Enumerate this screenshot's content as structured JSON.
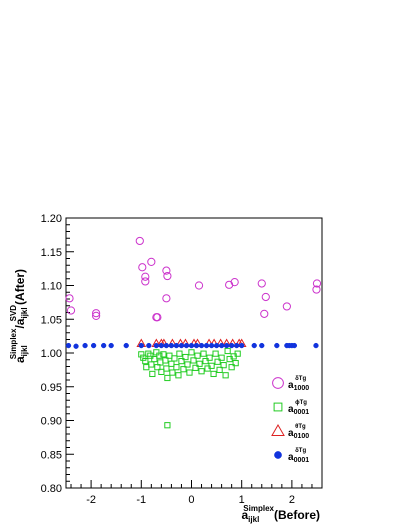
{
  "chart_data": {
    "type": "scatter",
    "title": "",
    "xlabel": {
      "base": "a",
      "sup": "Simplex",
      "sub": "ijkl",
      "tail": "(Before)"
    },
    "ylabel": {
      "num_base": "a",
      "num_sup": "Simplex",
      "num_sub": "ijkl",
      "den_base": "a",
      "den_sup": "SVD",
      "den_sub": "ijkl",
      "tail": "(After)"
    },
    "xlim": [
      -2.5,
      2.6
    ],
    "ylim": [
      0.8,
      1.2
    ],
    "xticks": [
      -2,
      -1,
      0,
      1,
      2
    ],
    "xtick_labels": [
      "-2",
      "-1",
      "0",
      "1",
      "2"
    ],
    "yticks": [
      0.8,
      0.85,
      0.9,
      0.95,
      1.0,
      1.05,
      1.1,
      1.15,
      1.2
    ],
    "ytick_labels": [
      "0.80",
      "0.85",
      "0.90",
      "0.95",
      "1.00",
      "1.05",
      "1.10",
      "1.15",
      "1.20"
    ],
    "grid": false,
    "legend_position": "bottom-right",
    "series": [
      {
        "name": "a1000 delta T g",
        "legend": {
          "base": "a",
          "sup": "δTg",
          "sub": "1000"
        },
        "marker": "open-circle",
        "color": "#cc33cc",
        "points": [
          [
            -2.43,
            1.081
          ],
          [
            -2.4,
            1.063
          ],
          [
            -1.9,
            1.059
          ],
          [
            -1.9,
            1.055
          ],
          [
            -1.03,
            1.166
          ],
          [
            -0.98,
            1.127
          ],
          [
            -0.92,
            1.106
          ],
          [
            -0.92,
            1.113
          ],
          [
            -0.8,
            1.135
          ],
          [
            -0.7,
            1.053
          ],
          [
            -0.68,
            1.053
          ],
          [
            -0.5,
            1.122
          ],
          [
            -0.48,
            1.114
          ],
          [
            -0.5,
            1.081
          ],
          [
            0.15,
            1.1
          ],
          [
            0.75,
            1.101
          ],
          [
            0.86,
            1.105
          ],
          [
            1.4,
            1.103
          ],
          [
            1.45,
            1.058
          ],
          [
            1.48,
            1.083
          ],
          [
            1.9,
            1.069
          ],
          [
            2.5,
            1.103
          ],
          [
            2.49,
            1.094
          ]
        ]
      },
      {
        "name": "a0001 phi T g",
        "legend": {
          "base": "a",
          "sup": "ϕTg",
          "sub": "0001"
        },
        "marker": "open-square",
        "color": "#22cc22",
        "points": [
          [
            -1.0,
            0.998
          ],
          [
            -0.96,
            0.993
          ],
          [
            -0.92,
            0.988
          ],
          [
            -0.9,
            0.979
          ],
          [
            -0.86,
            0.999
          ],
          [
            -0.82,
            0.996
          ],
          [
            -0.8,
            0.983
          ],
          [
            -0.78,
            0.969
          ],
          [
            -0.74,
            0.991
          ],
          [
            -0.7,
            1.001
          ],
          [
            -0.68,
            0.979
          ],
          [
            -0.64,
            0.996
          ],
          [
            -0.62,
            0.986
          ],
          [
            -0.6,
            0.972
          ],
          [
            -0.56,
            0.998
          ],
          [
            -0.52,
            0.989
          ],
          [
            -0.5,
            0.977
          ],
          [
            -0.48,
            0.963
          ],
          [
            -0.44,
            0.996
          ],
          [
            -0.4,
            0.984
          ],
          [
            -0.38,
            0.971
          ],
          [
            -0.34,
            0.992
          ],
          [
            -0.3,
            0.979
          ],
          [
            -0.26,
            0.967
          ],
          [
            -0.24,
            0.999
          ],
          [
            -0.2,
            0.988
          ],
          [
            -0.16,
            0.976
          ],
          [
            -0.12,
            0.994
          ],
          [
            -0.08,
            0.983
          ],
          [
            -0.04,
            0.971
          ],
          [
            0.0,
            1.001
          ],
          [
            0.04,
            0.989
          ],
          [
            0.08,
            0.978
          ],
          [
            0.12,
            0.996
          ],
          [
            0.16,
            0.984
          ],
          [
            0.2,
            0.973
          ],
          [
            0.24,
            0.999
          ],
          [
            0.28,
            0.988
          ],
          [
            0.32,
            0.977
          ],
          [
            0.36,
            0.993
          ],
          [
            0.4,
            0.981
          ],
          [
            0.44,
            0.969
          ],
          [
            0.48,
            0.999
          ],
          [
            0.52,
            0.987
          ],
          [
            0.56,
            0.975
          ],
          [
            0.6,
            0.993
          ],
          [
            0.64,
            0.982
          ],
          [
            0.68,
            0.967
          ],
          [
            0.72,
            1.003
          ],
          [
            0.76,
            0.991
          ],
          [
            0.8,
            0.979
          ],
          [
            0.84,
            0.995
          ],
          [
            0.88,
            0.985
          ],
          [
            0.92,
            0.999
          ],
          [
            -0.48,
            0.893
          ]
        ]
      },
      {
        "name": "a0100 theta T g",
        "legend": {
          "base": "a",
          "sup": "θTg",
          "sub": "0100"
        },
        "marker": "open-triangle",
        "color": "#dd2222",
        "points": [
          [
            -1.0,
            1.014
          ],
          [
            -0.7,
            1.014
          ],
          [
            -0.6,
            1.014
          ],
          [
            -0.55,
            1.014
          ],
          [
            -0.38,
            1.014
          ],
          [
            -0.22,
            1.014
          ],
          [
            -0.12,
            1.014
          ],
          [
            0.05,
            1.014
          ],
          [
            0.12,
            1.014
          ],
          [
            0.35,
            1.014
          ],
          [
            0.45,
            1.014
          ],
          [
            0.58,
            1.014
          ],
          [
            0.7,
            1.014
          ],
          [
            0.82,
            1.014
          ],
          [
            0.95,
            1.014
          ],
          [
            1.0,
            1.014
          ]
        ]
      },
      {
        "name": "a0001 delta T g",
        "legend": {
          "base": "a",
          "sup": "δTg",
          "sub": "0001"
        },
        "marker": "filled-circle",
        "color": "#1133dd",
        "points": [
          [
            -2.45,
            1.011
          ],
          [
            -2.3,
            1.01
          ],
          [
            -2.12,
            1.011
          ],
          [
            -1.95,
            1.011
          ],
          [
            -1.75,
            1.011
          ],
          [
            -1.6,
            1.011
          ],
          [
            -1.3,
            1.011
          ],
          [
            -1.0,
            1.011
          ],
          [
            -0.85,
            1.011
          ],
          [
            -0.7,
            1.011
          ],
          [
            -0.6,
            1.011
          ],
          [
            -0.5,
            1.011
          ],
          [
            -0.4,
            1.011
          ],
          [
            -0.3,
            1.011
          ],
          [
            -0.2,
            1.011
          ],
          [
            -0.1,
            1.011
          ],
          [
            0.0,
            1.011
          ],
          [
            0.1,
            1.011
          ],
          [
            0.2,
            1.011
          ],
          [
            0.3,
            1.011
          ],
          [
            0.4,
            1.011
          ],
          [
            0.5,
            1.011
          ],
          [
            0.6,
            1.011
          ],
          [
            0.7,
            1.011
          ],
          [
            0.8,
            1.011
          ],
          [
            0.9,
            1.011
          ],
          [
            1.0,
            1.011
          ],
          [
            1.25,
            1.011
          ],
          [
            1.4,
            1.011
          ],
          [
            1.7,
            1.011
          ],
          [
            1.9,
            1.011
          ],
          [
            1.95,
            1.011
          ],
          [
            2.0,
            1.011
          ],
          [
            2.05,
            1.011
          ],
          [
            2.48,
            1.011
          ]
        ]
      }
    ]
  }
}
